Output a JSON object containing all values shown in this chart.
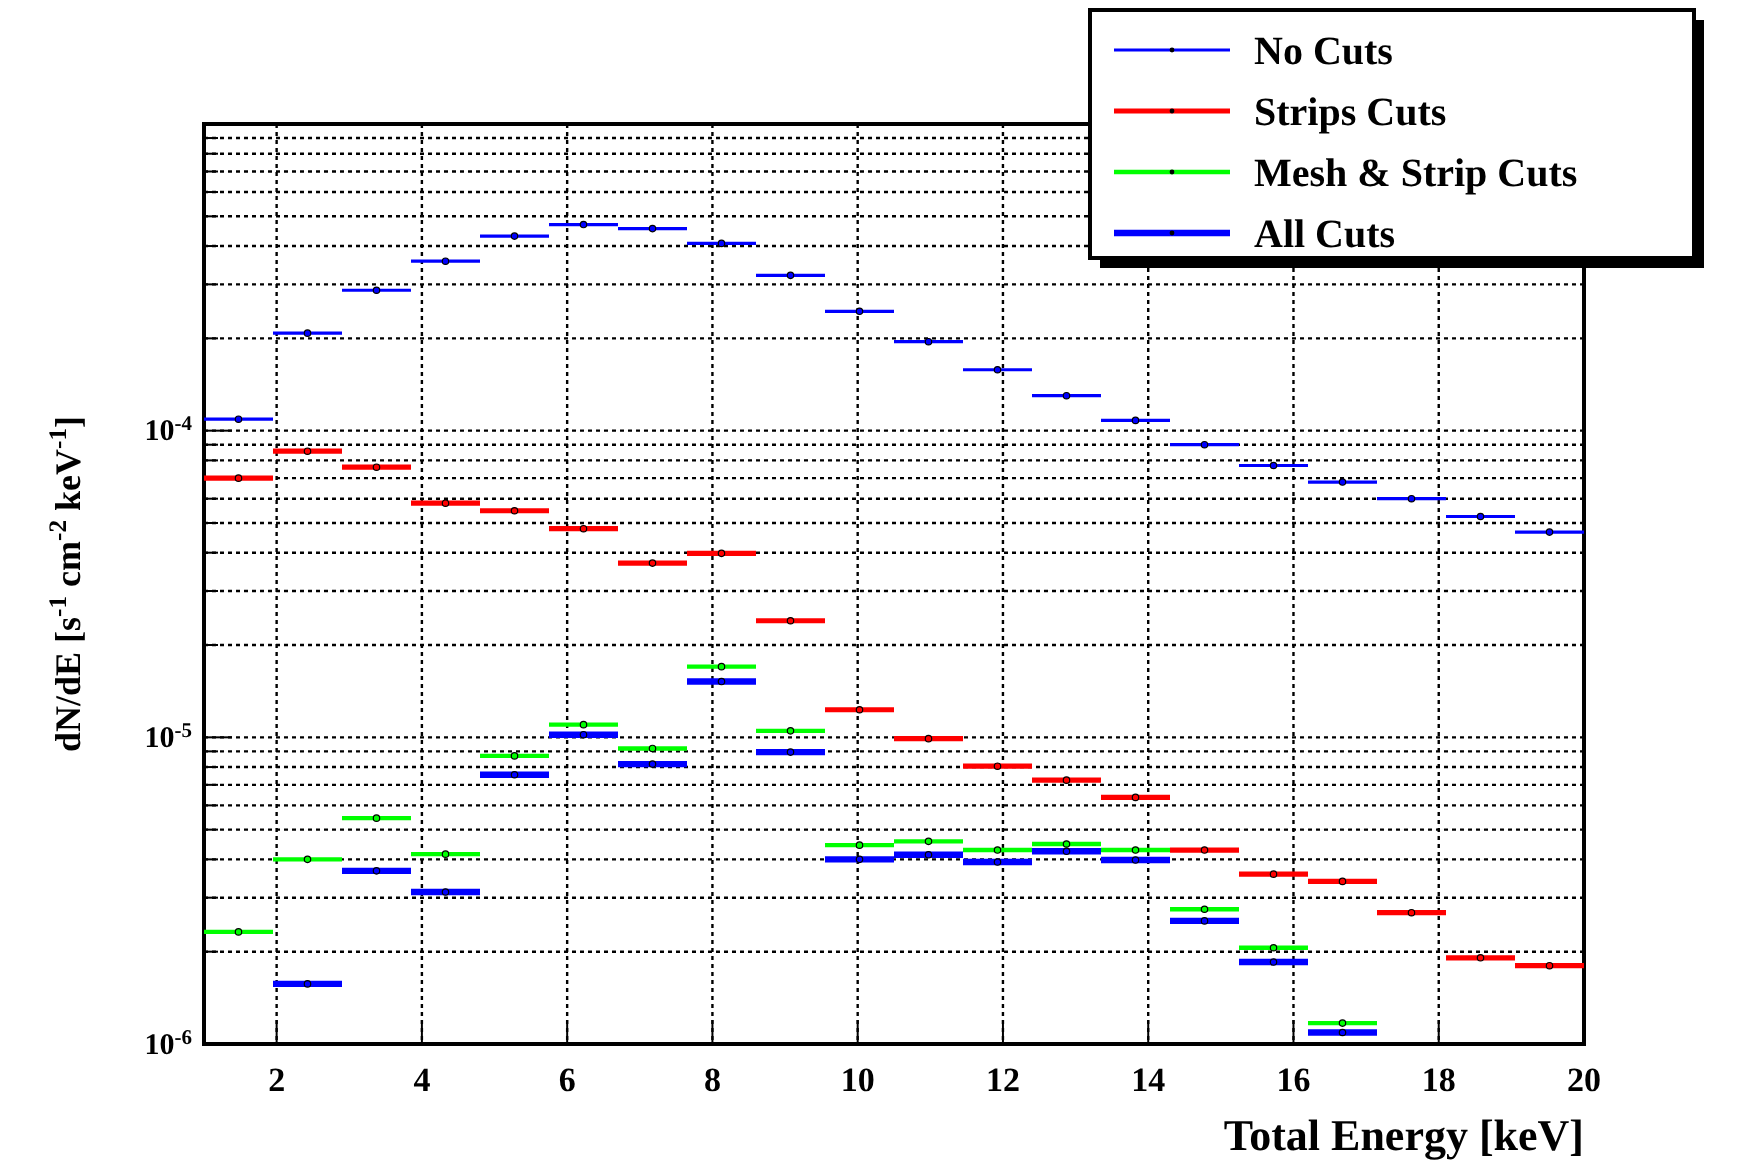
{
  "chart_data": {
    "type": "scatter",
    "xlabel": "Total Energy [keV]",
    "ylabel": "dN/dE  [s$^{-1}$ cm$^{-2}$ keV$^{-1}$]",
    "log": "y",
    "grid": true,
    "legend": "top right",
    "marker": "circle",
    "xlim": [
      1,
      20
    ],
    "xticks": [
      2,
      4,
      6,
      8,
      10,
      12,
      14,
      16,
      18,
      20
    ],
    "ylim": [
      1e-06,
      0.001
    ],
    "yticks": [
      {
        "value": 1e-06,
        "label": "10$^{-6}$"
      },
      {
        "value": 2e-06,
        "label": null
      },
      {
        "value": 3e-06,
        "label": null
      },
      {
        "value": 4e-06,
        "label": null
      },
      {
        "value": 5e-06,
        "label": null
      },
      {
        "value": 6e-06,
        "label": null
      },
      {
        "value": 7e-06,
        "label": null
      },
      {
        "value": 8e-06,
        "label": null
      },
      {
        "value": 9e-06,
        "label": null
      },
      {
        "value": 1e-05,
        "label": "10$^{-5}$"
      },
      {
        "value": 2e-05,
        "label": null
      },
      {
        "value": 3e-05,
        "label": null
      },
      {
        "value": 4e-05,
        "label": null
      },
      {
        "value": 5e-05,
        "label": null
      },
      {
        "value": 6e-05,
        "label": null
      },
      {
        "value": 7e-05,
        "label": null
      },
      {
        "value": 8e-05,
        "label": null
      },
      {
        "value": 9e-05,
        "label": null
      },
      {
        "value": 0.0001,
        "label": "10$^{-4}$"
      },
      {
        "value": 0.0002,
        "label": null
      },
      {
        "value": 0.0003,
        "label": null
      },
      {
        "value": 0.0004,
        "label": null
      },
      {
        "value": 0.0005,
        "label": null
      },
      {
        "value": 0.0006,
        "label": null
      },
      {
        "value": 0.0007,
        "label": null
      },
      {
        "value": 0.0008,
        "label": null
      },
      {
        "value": 0.0009,
        "label": null
      }
    ],
    "x": [
      1.475,
      2.425,
      3.375,
      4.325,
      5.275,
      6.225,
      7.175,
      8.125,
      9.075,
      10.025,
      10.975,
      11.925,
      12.875,
      13.825,
      14.775,
      15.725,
      16.675,
      17.625,
      18.575,
      19.525
    ],
    "series": [
      {
        "name": "No Cuts",
        "color": "#0000ff",
        "values": [
          0.000109,
          0.000208,
          0.000287,
          0.000357,
          0.000431,
          0.00047,
          0.000456,
          0.000408,
          0.000321,
          0.000245,
          0.000195,
          0.000158,
          0.00013,
          0.000108,
          9e-05,
          7.7e-05,
          6.8e-05,
          6e-05,
          5.25e-05,
          4.67e-05
        ],
        "xerrors": [
          0.475,
          0.475,
          0.475,
          0.475,
          0.475,
          0.475,
          0.475,
          0.475,
          0.475,
          0.475,
          0.475,
          0.475,
          0.475,
          0.475,
          0.475,
          0.475,
          0.475,
          0.475,
          0.475,
          0.475
        ]
      },
      {
        "name": "Strips Cuts",
        "color": "#ff0000",
        "values": [
          7e-05,
          8.57e-05,
          7.6e-05,
          5.8e-05,
          5.48e-05,
          4.79e-05,
          3.7e-05,
          3.98e-05,
          2.4e-05,
          1.23e-05,
          9.9e-06,
          8.05e-06,
          7.25e-06,
          6.37e-06,
          4.29e-06,
          3.58e-06,
          3.39e-06,
          2.68e-06,
          1.91e-06,
          1.8e-06
        ],
        "xerrors": [
          0.475,
          0.475,
          0.475,
          0.475,
          0.475,
          0.475,
          0.475,
          0.475,
          0.475,
          0.475,
          0.475,
          0.475,
          0.475,
          0.475,
          0.475,
          0.475,
          0.475,
          0.475,
          0.475,
          0.475
        ]
      },
      {
        "name": "Mesh & Strip Cuts",
        "color": "#00ff00",
        "values": [
          2.32e-06,
          4e-06,
          5.45e-06,
          4.16e-06,
          8.7e-06,
          1.1e-05,
          9.2e-06,
          1.7e-05,
          1.05e-05,
          4.45e-06,
          4.58e-06,
          4.29e-06,
          4.49e-06,
          4.29e-06,
          2.75e-06,
          2.06e-06,
          1.17e-06,
          null,
          null,
          null
        ],
        "xerrors": [
          0.475,
          0.475,
          0.475,
          0.475,
          0.475,
          0.475,
          0.475,
          0.475,
          0.475,
          0.475,
          0.475,
          0.475,
          0.475,
          0.475,
          0.475,
          0.475,
          0.475,
          null,
          null,
          null
        ]
      },
      {
        "name": "All Cuts",
        "color": "#0000ff",
        "values": [
          null,
          1.57e-06,
          3.67e-06,
          3.13e-06,
          7.55e-06,
          1.02e-05,
          8.18e-06,
          1.52e-05,
          8.95e-06,
          4e-06,
          4.14e-06,
          3.92e-06,
          4.25e-06,
          3.98e-06,
          2.52e-06,
          1.85e-06,
          1.09e-06,
          null,
          null,
          null
        ],
        "xerrors": [
          null,
          0.475,
          0.475,
          0.475,
          0.475,
          0.475,
          0.475,
          0.475,
          0.475,
          0.475,
          0.475,
          0.475,
          0.475,
          0.475,
          0.475,
          0.475,
          0.475,
          null,
          null,
          null
        ]
      }
    ]
  }
}
